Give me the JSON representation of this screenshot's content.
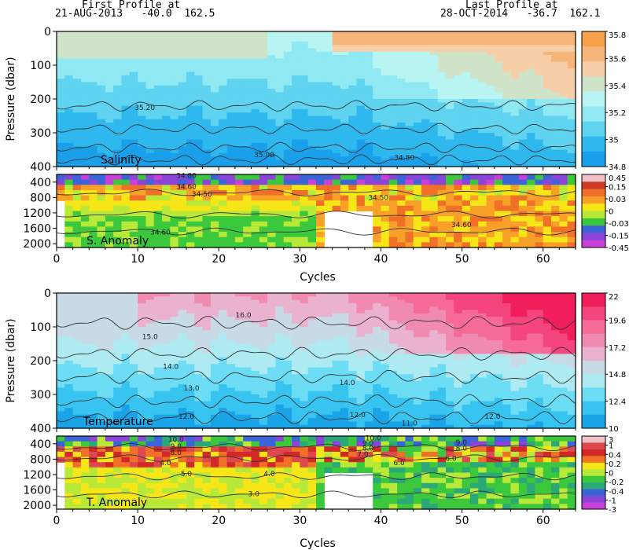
{
  "header": {
    "first_label": "First Profile at",
    "first_info": "21-AUG-2013   -40.0  162.5",
    "last_label": "Last Profile at",
    "last_info": "28-OCT-2014   -36.7  162.1"
  },
  "chart_data": [
    {
      "type": "heatmap",
      "panel": "salinity",
      "label": "Salinity",
      "ylabel": "Pressure (dbar)",
      "xlim": [
        0,
        64
      ],
      "ylim": [
        400,
        0
      ],
      "yticks": [
        0,
        100,
        200,
        300,
        400
      ],
      "colorbar": {
        "ticks": [
          "35.8",
          "35.6",
          "35.4",
          "35.2",
          "35",
          "34.8"
        ],
        "colors": [
          "#f7a04a",
          "#f8b57a",
          "#f6cfa8",
          "#cfe3c9",
          "#b8f5f2",
          "#8fe8f2",
          "#5fd3f0",
          "#2fb8ee",
          "#1aa0ea"
        ]
      },
      "contour_labels": [
        "35.20",
        "35.00",
        "34.80"
      ]
    },
    {
      "type": "heatmap",
      "panel": "salinity_anomaly",
      "label": "S. Anomaly",
      "xlim": [
        0,
        64
      ],
      "ylim": [
        2100,
        200
      ],
      "yticks": [
        400,
        800,
        1200,
        1600,
        2000
      ],
      "colorbar": {
        "ticks": [
          "0.45",
          "0.15",
          "0.03",
          "0",
          "-0.03",
          "-0.15",
          "-0.45"
        ],
        "colors": [
          "#f2c0c8",
          "#d23a28",
          "#f07028",
          "#f8a028",
          "#f6e618",
          "#b8e838",
          "#3cc83c",
          "#3a64d8",
          "#8a44d8",
          "#c840d8"
        ]
      },
      "contour_labels": [
        "34.80",
        "34.60",
        "34.50",
        "34.50",
        "34.60",
        "34.60"
      ]
    },
    {
      "type": "heatmap",
      "panel": "temperature",
      "label": "Temperature",
      "ylabel": "Pressure (dbar)",
      "xlim": [
        0,
        64
      ],
      "ylim": [
        400,
        0
      ],
      "yticks": [
        0,
        100,
        200,
        300,
        400
      ],
      "colorbar": {
        "ticks": [
          "22",
          "19.6",
          "17.2",
          "14.8",
          "12.4",
          "10"
        ],
        "colors": [
          "#f01e5a",
          "#f4457c",
          "#f66a98",
          "#f08ab0",
          "#eab2cf",
          "#c8dae6",
          "#aeeaf2",
          "#6ddcf5",
          "#38c4f0",
          "#1aa4e8"
        ]
      },
      "contour_labels": [
        "16.0",
        "15.0",
        "14.0",
        "14.0",
        "13.0",
        "12.0",
        "12.0",
        "12.0",
        "11.0"
      ]
    },
    {
      "type": "heatmap",
      "panel": "temperature_anomaly",
      "label": "T. Anomaly",
      "xlabel": "Cycles",
      "xlim": [
        0,
        64
      ],
      "ylim": [
        2100,
        200
      ],
      "yticks": [
        400,
        800,
        1200,
        1600,
        2000
      ],
      "xticks": [
        0,
        10,
        20,
        30,
        40,
        50,
        60
      ],
      "colorbar": {
        "ticks": [
          "3",
          "1",
          "0.4",
          "0.2",
          "0",
          "-0.2",
          "-0.4",
          "-1",
          "-3"
        ],
        "colors": [
          "#f2c0c8",
          "#e04850",
          "#d22828",
          "#f07028",
          "#f6e618",
          "#b8e838",
          "#3cc83c",
          "#2aa878",
          "#3a64d8",
          "#8a44d8",
          "#c840d8"
        ]
      },
      "contour_labels": [
        "10.0",
        "9.0",
        "8.0",
        "5.0",
        "4.0",
        "4.0",
        "3.0",
        "10.0",
        "9.0",
        "8.0",
        "7.0",
        "6.0",
        "8.0",
        "9.0",
        "6.0"
      ]
    }
  ],
  "axis_labels": {
    "cycles_top": "Cycles",
    "cycles_bottom": "Cycles"
  }
}
